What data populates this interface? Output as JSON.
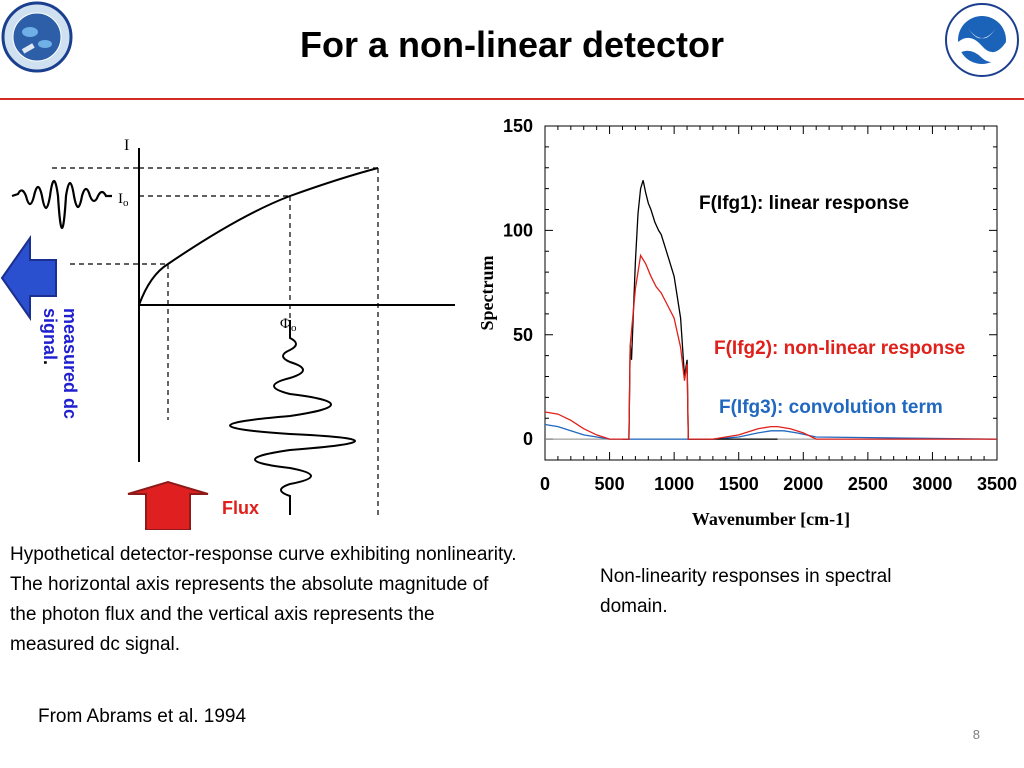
{
  "slide": {
    "title": "For a non-linear detector",
    "page_number": "8",
    "citation": "From Abrams et al. 1994",
    "logos": {
      "left": {
        "name": "noaa-nesdis-star-logo",
        "text": "NOAA NESDIS STAR"
      },
      "right": {
        "name": "noaa-logo",
        "text": "NOAA"
      }
    },
    "accent_color": "#d62b24"
  },
  "left_figure": {
    "axis_I": "I",
    "axis_Io": "I",
    "axis_Io_sub": "o",
    "axis_phi": "Φ",
    "axis_phi_sub": "o",
    "measured_label_line1": "measured dc",
    "measured_label_line2": "signal",
    "measured_label_suffix": ".",
    "flux_label": "Flux",
    "label_color": "#1f1fd0",
    "flux_color": "#e0201a",
    "arrow_left_color": "#2a4fcf",
    "arrow_up_color": "#e02020",
    "caption": "Hypothetical detector-response curve exhibiting nonlinearity. The horizontal axis represents the absolute magnitude of the photon flux and the vertical axis represents the measured dc  signal."
  },
  "right_figure": {
    "caption": "Non-linearity responses  in spectral  domain.",
    "legend": {
      "ifg1": "F(Ifg1): linear response",
      "ifg2": "F(Ifg2): non-linear response",
      "ifg3": "F(Ifg3): convolution term"
    },
    "legend_colors": {
      "ifg1": "#000000",
      "ifg2": "#e0201a",
      "ifg3": "#2068c0"
    }
  },
  "chart_data": {
    "type": "line",
    "xlabel": "Wavenumber [cm-1]",
    "ylabel": "Spectrum",
    "xlim": [
      0,
      3500
    ],
    "ylim": [
      -10,
      150
    ],
    "xticks": [
      "0",
      "500",
      "1000",
      "1500",
      "2000",
      "2500",
      "3000",
      "3500"
    ],
    "yticks": [
      "0",
      "50",
      "100",
      "150"
    ],
    "series": [
      {
        "name": "F(Ifg1): linear response",
        "color": "#000000",
        "x": [
          600,
          650,
          660,
          670,
          700,
          720,
          740,
          760,
          780,
          800,
          820,
          850,
          880,
          900,
          950,
          1000,
          1050,
          1080,
          1100,
          1110,
          1800
        ],
        "y": [
          0,
          0,
          45,
          38,
          85,
          108,
          120,
          124,
          118,
          113,
          110,
          104,
          100,
          98,
          88,
          78,
          58,
          30,
          38,
          0,
          0
        ]
      },
      {
        "name": "F(Ifg2): non-linear response",
        "color": "#e0201a",
        "x": [
          0,
          100,
          200,
          300,
          400,
          500,
          600,
          650,
          660,
          700,
          740,
          780,
          820,
          860,
          900,
          950,
          1000,
          1050,
          1080,
          1100,
          1110,
          1300,
          1500,
          1650,
          1750,
          1800,
          1900,
          2000,
          2100,
          3500
        ],
        "y": [
          13,
          12,
          9,
          5,
          2,
          0,
          0,
          0,
          45,
          72,
          88,
          84,
          78,
          73,
          70,
          64,
          58,
          44,
          28,
          36,
          0,
          0,
          2,
          5,
          6,
          6,
          5,
          3,
          0,
          0
        ]
      },
      {
        "name": "F(Ifg3): convolution term",
        "color": "#2068c0",
        "x": [
          0,
          100,
          200,
          300,
          400,
          500,
          600,
          1300,
          1500,
          1650,
          1750,
          1850,
          1950,
          2100,
          3500
        ],
        "y": [
          7,
          6,
          4,
          2,
          1,
          0,
          0,
          0,
          1,
          3,
          4,
          4,
          3,
          1,
          0
        ]
      }
    ]
  }
}
